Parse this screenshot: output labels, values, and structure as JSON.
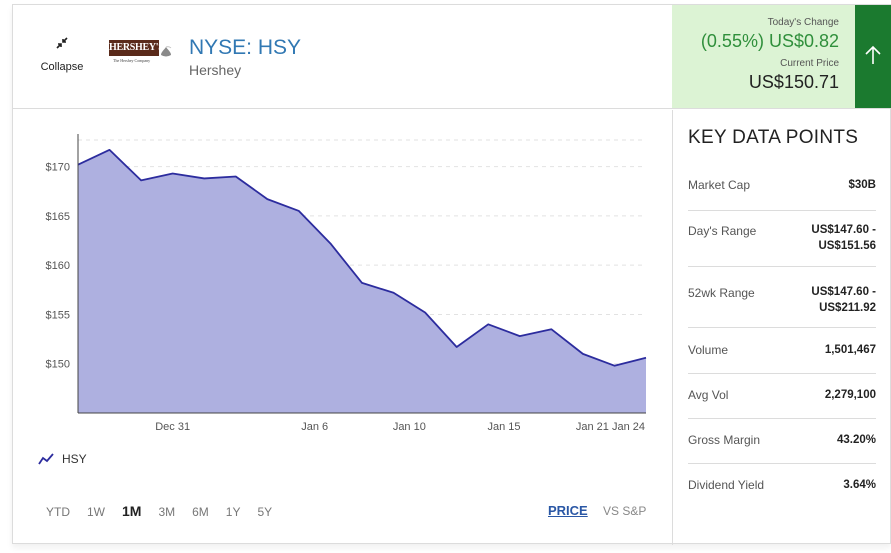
{
  "header": {
    "collapse_label": "Collapse",
    "logo_text": "HERSHEY'S",
    "logo_subtext": "The Hershey Company",
    "ticker": "NYSE: HSY",
    "company": "Hershey"
  },
  "price": {
    "change_label": "Today's Change",
    "change_value": "(0.55%) US$0.82",
    "current_label": "Current Price",
    "current_value": "US$150.71",
    "direction_icon": "arrow-up-icon",
    "accent_color": "#1b7a2f",
    "change_color": "#2f8f3b"
  },
  "chart_data": {
    "type": "area",
    "series": [
      {
        "name": "HSY",
        "color": "#2c2c9e",
        "fill": "#aeb0e0",
        "values": [
          170.2,
          171.7,
          168.6,
          169.3,
          168.8,
          169.0,
          166.7,
          165.5,
          162.2,
          158.2,
          157.2,
          155.2,
          151.7,
          154.0,
          152.8,
          153.5,
          151.0,
          149.8,
          150.6
        ]
      }
    ],
    "x_ticks": [
      "Dec 31",
      "Jan 6",
      "Jan 10",
      "Jan 15",
      "Jan 21",
      "Jan 24"
    ],
    "x_tick_index": [
      3.0,
      7.5,
      10.5,
      13.5,
      16.3,
      18.0
    ],
    "y_ticks": [
      150,
      155,
      160,
      165,
      170
    ],
    "y_tick_labels": [
      "$150",
      "$155",
      "$160",
      "$165",
      "$170"
    ],
    "ylim": [
      145.0,
      172.7
    ],
    "grid": true,
    "legend": "bottom-left"
  },
  "ranges": {
    "items": [
      "YTD",
      "1W",
      "1M",
      "3M",
      "6M",
      "1Y",
      "5Y"
    ],
    "active": "1M"
  },
  "modes": {
    "price": "PRICE",
    "vs_sp": "VS S&P"
  },
  "key_data": {
    "title": "KEY DATA POINTS",
    "rows": [
      {
        "label": "Market Cap",
        "value": "$30B"
      },
      {
        "label": "Day's Range",
        "value": "US$147.60 - US$151.56"
      },
      {
        "label": "52wk Range",
        "value": "US$147.60 - US$211.92"
      },
      {
        "label": "Volume",
        "value": "1,501,467"
      },
      {
        "label": "Avg Vol",
        "value": "2,279,100"
      },
      {
        "label": "Gross Margin",
        "value": "43.20%"
      },
      {
        "label": "Dividend Yield",
        "value": "3.64%"
      }
    ]
  }
}
